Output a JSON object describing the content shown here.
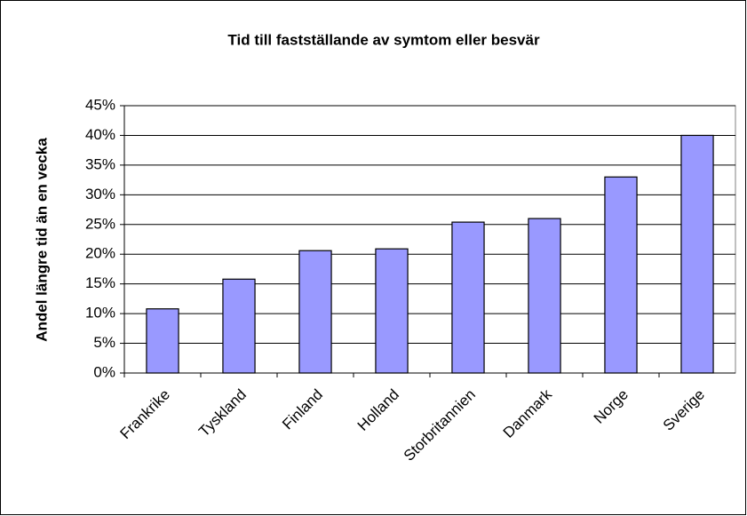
{
  "chart_data": {
    "type": "bar",
    "title": "Tid till fastställande av symtom eller besvär",
    "y_label": "Andel längre tid än en vecka",
    "categories": [
      "Frankrike",
      "Tyskland",
      "Finland",
      "Holland",
      "Storbritannien",
      "Danmark",
      "Norge",
      "Sverige"
    ],
    "values": [
      10.8,
      15.8,
      20.6,
      20.9,
      25.4,
      26.0,
      33.0,
      40.0
    ],
    "color": "#9999ff",
    "ylim": [
      0,
      45
    ],
    "yticks": [
      {
        "value": 0,
        "label": "0%"
      },
      {
        "value": 5,
        "label": "5%"
      },
      {
        "value": 10,
        "label": "10%"
      },
      {
        "value": 15,
        "label": "15%"
      },
      {
        "value": 20,
        "label": "20%"
      },
      {
        "value": 25,
        "label": "25%"
      },
      {
        "value": 30,
        "label": "30%"
      },
      {
        "value": 35,
        "label": "35%"
      },
      {
        "value": 40,
        "label": "40%"
      },
      {
        "value": 45,
        "label": "45%"
      }
    ],
    "grid": true
  }
}
